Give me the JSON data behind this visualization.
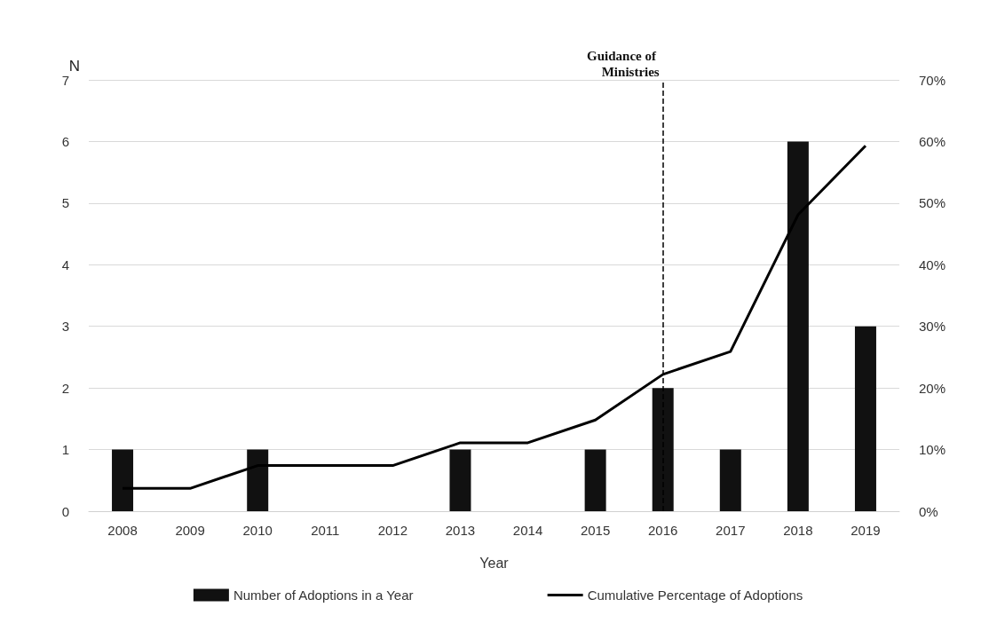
{
  "chart_data": {
    "type": "bar",
    "xlabel": "Year",
    "ylabel": "N",
    "categories": [
      "2008",
      "2009",
      "2010",
      "2011",
      "2012",
      "2013",
      "2014",
      "2015",
      "2016",
      "2017",
      "2018",
      "2019"
    ],
    "series": [
      {
        "name": "Number of Adoptions in a Year",
        "color": "#111111",
        "values": [
          1,
          0,
          1,
          0,
          0,
          1,
          0,
          1,
          2,
          1,
          6,
          3
        ]
      },
      {
        "name": "Cumulative Percentage of Adoptions",
        "type": "line",
        "axis": "y2",
        "color": "#000000",
        "values": [
          3.7,
          3.7,
          7.4,
          7.4,
          7.4,
          11.1,
          11.1,
          14.8,
          22.2,
          25.9,
          48.1,
          59.3
        ]
      }
    ],
    "ylim": [
      0,
      7
    ],
    "yticks": [
      0,
      1,
      2,
      3,
      4,
      5,
      6,
      7
    ],
    "y2lim": [
      0,
      70
    ],
    "y2ticks": [
      {
        "value": 0,
        "label": "0%"
      },
      {
        "value": 10,
        "label": "10%"
      },
      {
        "value": 20,
        "label": "20%"
      },
      {
        "value": 30,
        "label": "30%"
      },
      {
        "value": 40,
        "label": "40%"
      },
      {
        "value": 50,
        "label": "50%"
      },
      {
        "value": 60,
        "label": "60%"
      },
      {
        "value": 70,
        "label": "70%"
      }
    ],
    "ref_lines": [
      {
        "axis": "x",
        "value": "2016",
        "label": "Guidance of Ministries",
        "line_style": "dashed",
        "color": "#000000"
      }
    ],
    "grid": "y",
    "legend": "bottom",
    "marker": "none",
    "line_style": "solid"
  }
}
